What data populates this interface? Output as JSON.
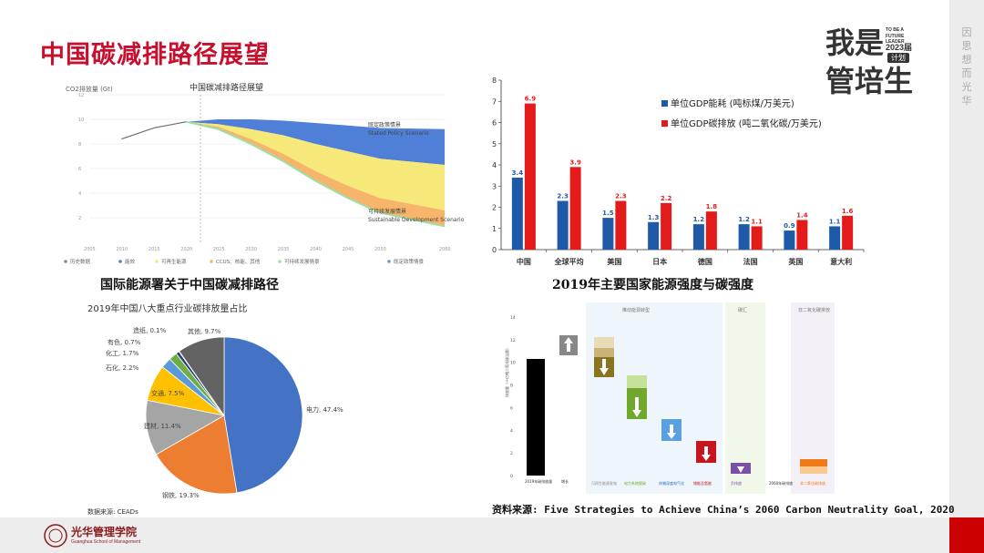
{
  "page": {
    "title": "中国碳减排路径展望",
    "sidebar_text": "因思想 而光华",
    "logo": {
      "line1": "我是",
      "line2": "管培生",
      "to_be": "TO BE A",
      "future": "FUTURE LEADER",
      "year": "2023届",
      "plan": "计划"
    },
    "footer_logo_cn": "光华管理学院",
    "footer_logo_en": "Guanghua School of Management"
  },
  "captions": {
    "iea": "国际能源署关于中国碳减排路径",
    "gdp": "2019年主要国家能源强度与碳强度",
    "source_right": "资料来源: Five Strategies to Achieve China’s 2060 Carbon Neutrality Goal, 2020",
    "source_pie": "数据来源: CEADs"
  },
  "chart_data": [
    {
      "type": "area",
      "title": "中国碳减排路径展望",
      "ylabel": "CO2排放量 (Gt)",
      "x_ticks": [
        "2005",
        "2010",
        "2015",
        "2020",
        "2025",
        "2030",
        "2035",
        "2040",
        "2045",
        "2050",
        "2060"
      ],
      "y_ticks": [
        "12",
        "10",
        "8",
        "6",
        "4",
        "2"
      ],
      "annotations": [
        {
          "cn": "既定政策情景",
          "en": "Stated Policy Scenario"
        },
        {
          "cn": "可持续发展情景",
          "en": "Sustainable Development Scenario"
        }
      ],
      "legend": [
        "历史数据",
        "能效",
        "可再生能源",
        "CCUS、核能、其他",
        "可持续发展情景",
        "既定政策情景"
      ],
      "colors": {
        "efficiency": "#4f7fd6",
        "renewables": "#f6e97a",
        "ccus": "#f6b56b",
        "sds": "#9be0a9",
        "history": "#6e6e6e"
      },
      "x": [
        2010,
        2015,
        2020,
        2025,
        2030,
        2035,
        2040,
        2045,
        2050,
        2060
      ],
      "history": [
        8.4,
        9.3,
        9.8
      ],
      "stated_policy": [
        9.8,
        10.0,
        10.0,
        9.9,
        9.7,
        9.5,
        9.3,
        9.2
      ],
      "after_efficiency": [
        9.8,
        9.6,
        9.2,
        8.7,
        8.0,
        7.4,
        6.8,
        6.3
      ],
      "after_renewables": [
        9.8,
        9.4,
        8.4,
        7.2,
        5.8,
        4.6,
        3.6,
        2.6
      ],
      "sustainable": [
        9.8,
        9.2,
        8.0,
        6.6,
        5.0,
        3.6,
        2.4,
        1.3
      ]
    },
    {
      "type": "bar",
      "categories": [
        "中国",
        "全球平均",
        "美国",
        "日本",
        "德国",
        "法国",
        "英国",
        "意大利"
      ],
      "y_ticks": [
        0,
        1,
        2,
        3,
        4,
        5,
        6,
        7,
        8
      ],
      "ylim": [
        0,
        8
      ],
      "legend_placement": "top-right",
      "series": [
        {
          "name": "单位GDP能耗 (吨标煤/万美元)",
          "color": "#1f5aa8",
          "values": [
            3.4,
            2.3,
            1.5,
            1.3,
            1.2,
            1.2,
            0.9,
            1.1
          ]
        },
        {
          "name": "单位GDP碳排放 (吨二氧化碳/万美元)",
          "color": "#e31b1b",
          "values": [
            6.9,
            3.9,
            2.3,
            2.2,
            1.8,
            1.1,
            1.4,
            1.6
          ]
        }
      ]
    },
    {
      "type": "pie",
      "title": "2019年中国八大重点行业碳排放量占比",
      "slices": [
        {
          "label": "电力",
          "value": 47.4,
          "text": "电力, 47.4%",
          "color": "#4472c4"
        },
        {
          "label": "钢铁",
          "value": 19.3,
          "text": "钢铁, 19.3%",
          "color": "#ed7d31"
        },
        {
          "label": "建材",
          "value": 11.4,
          "text": "建材, 11.4%",
          "color": "#a5a5a5"
        },
        {
          "label": "交通",
          "value": 7.5,
          "text": "交通, 7.5%",
          "color": "#ffc000"
        },
        {
          "label": "石化",
          "value": 2.2,
          "text": "石化, 2.2%",
          "color": "#5b9bd5"
        },
        {
          "label": "化工",
          "value": 1.7,
          "text": "化工, 1.7%",
          "color": "#70ad47"
        },
        {
          "label": "有色",
          "value": 0.7,
          "text": "有色, 0.7%",
          "color": "#264478"
        },
        {
          "label": "造纸",
          "value": 0.1,
          "text": "造纸, 0.1%",
          "color": "#9e480e"
        },
        {
          "label": "其他",
          "value": 9.7,
          "text": "其他, 9.7%",
          "color": "#636363"
        }
      ]
    },
    {
      "type": "bar",
      "y_ticks": [
        0,
        2,
        4,
        6,
        8,
        10,
        12,
        14
      ],
      "ylabel": "排放量（十亿吨二氧化碳当量）",
      "bars": [
        {
          "label": "2019年碳排放量",
          "value": 10.3
        },
        {
          "label": "增长",
          "value": 1.7
        }
      ],
      "sections": [
        "推动能源转型",
        "碳汇",
        "非二氧化碳排放"
      ],
      "steps": [
        "可再生能源发电",
        "电力系统脱碳",
        "终端深度电气化",
        "储能及氢能",
        "负排放",
        "2060年碳排放",
        "非二氧化碳排放"
      ]
    }
  ]
}
